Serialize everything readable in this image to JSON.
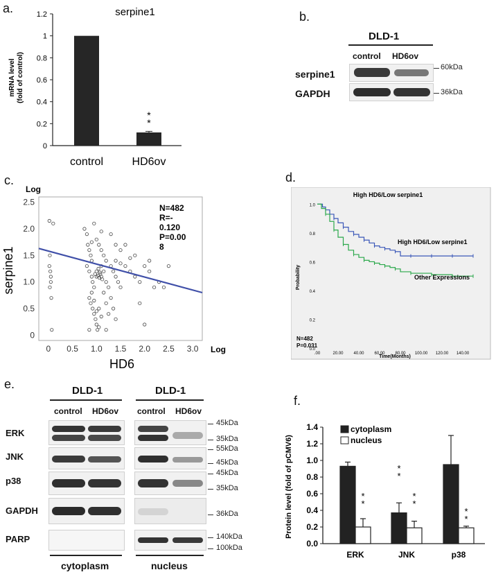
{
  "panels": {
    "a": "a.",
    "b": "b.",
    "c": "c.",
    "d": "d.",
    "e": "e.",
    "f": "f."
  },
  "chart_data": [
    {
      "panel": "a",
      "type": "bar",
      "title": "serpine1",
      "ylabel_line1": "mRNA level",
      "ylabel_line2": "(fold of control)",
      "categories": [
        "control",
        "HD6ov"
      ],
      "values": [
        1.0,
        0.12
      ],
      "errors": [
        0,
        0.01
      ],
      "yticks": [
        "0",
        "0.2",
        "0.4",
        "0.6",
        "0.8",
        "1",
        "1.2"
      ],
      "ylim": [
        0,
        1.2
      ],
      "significance": "**"
    },
    {
      "panel": "c",
      "type": "scatter",
      "xlabel": "HD6",
      "ylabel": "serpine1",
      "x_log_label": "Log",
      "y_log_label": "Log",
      "xlim": [
        -0.2,
        3.2
      ],
      "ylim": [
        -0.1,
        2.6
      ],
      "xticks": [
        "0",
        "0.5",
        "1.0",
        "1.5",
        "2.0",
        "2.5",
        "3.0"
      ],
      "yticks": [
        "0",
        "0.5",
        "1.0",
        "1.5",
        "2.0",
        "2.5"
      ],
      "stats_lines": [
        "N=482",
        "R=-",
        "0.120",
        "P=0.00",
        "8"
      ],
      "regression": {
        "x0": -0.2,
        "y0": 1.63,
        "x1": 3.2,
        "y1": 0.8
      },
      "points": [
        [
          0.02,
          2.15
        ],
        [
          0.03,
          1.5
        ],
        [
          0.02,
          1.3
        ],
        [
          0.05,
          1.1
        ],
        [
          0.03,
          0.9
        ],
        [
          0.06,
          0.7
        ],
        [
          0.1,
          2.1
        ],
        [
          0.04,
          1.2
        ],
        [
          0.07,
          0.1
        ],
        [
          0.05,
          1.0
        ],
        [
          0.75,
          2.0
        ],
        [
          0.8,
          1.9
        ],
        [
          0.82,
          1.7
        ],
        [
          0.85,
          1.6
        ],
        [
          0.88,
          1.5
        ],
        [
          0.9,
          1.4
        ],
        [
          0.8,
          1.3
        ],
        [
          0.85,
          1.2
        ],
        [
          0.9,
          1.1
        ],
        [
          0.92,
          1.0
        ],
        [
          0.95,
          0.9
        ],
        [
          0.9,
          0.8
        ],
        [
          0.85,
          0.7
        ],
        [
          0.88,
          0.6
        ],
        [
          0.92,
          0.5
        ],
        [
          0.95,
          0.4
        ],
        [
          0.98,
          0.3
        ],
        [
          1.0,
          0.2
        ],
        [
          1.02,
          0.1
        ],
        [
          1.05,
          0.15
        ],
        [
          0.97,
          1.15
        ],
        [
          1.0,
          1.1
        ],
        [
          1.03,
          1.12
        ],
        [
          1.06,
          1.08
        ],
        [
          1.08,
          1.15
        ],
        [
          1.1,
          1.1
        ],
        [
          1.12,
          1.05
        ],
        [
          1.0,
          1.2
        ],
        [
          1.04,
          1.25
        ],
        [
          1.07,
          1.18
        ],
        [
          0.95,
          2.1
        ],
        [
          1.0,
          1.8
        ],
        [
          1.05,
          1.7
        ],
        [
          1.1,
          1.6
        ],
        [
          1.15,
          1.5
        ],
        [
          1.2,
          1.4
        ],
        [
          1.1,
          1.3
        ],
        [
          1.15,
          1.2
        ],
        [
          1.2,
          1.0
        ],
        [
          1.25,
          0.9
        ],
        [
          1.3,
          1.3
        ],
        [
          1.35,
          1.2
        ],
        [
          1.4,
          1.1
        ],
        [
          1.45,
          1.0
        ],
        [
          1.5,
          0.9
        ],
        [
          1.4,
          1.4
        ],
        [
          1.5,
          1.35
        ],
        [
          1.6,
          1.3
        ],
        [
          1.7,
          1.2
        ],
        [
          1.8,
          1.1
        ],
        [
          1.3,
          0.7
        ],
        [
          1.35,
          0.5
        ],
        [
          1.4,
          0.3
        ],
        [
          1.2,
          0.6
        ],
        [
          1.15,
          0.8
        ],
        [
          1.25,
          0.4
        ],
        [
          1.05,
          0.5
        ],
        [
          1.1,
          0.35
        ],
        [
          1.0,
          0.45
        ],
        [
          0.95,
          0.65
        ],
        [
          1.9,
          1.0
        ],
        [
          2.0,
          1.3
        ],
        [
          2.1,
          1.2
        ],
        [
          2.2,
          0.9
        ],
        [
          2.3,
          1.0
        ],
        [
          2.5,
          1.3
        ],
        [
          2.0,
          0.2
        ],
        [
          1.9,
          0.6
        ],
        [
          2.4,
          0.9
        ],
        [
          2.1,
          1.4
        ],
        [
          1.6,
          1.7
        ],
        [
          1.7,
          1.45
        ],
        [
          1.8,
          1.5
        ],
        [
          1.5,
          1.6
        ],
        [
          1.3,
          1.9
        ],
        [
          1.4,
          1.7
        ],
        [
          0.9,
          1.75
        ],
        [
          1.1,
          1.95
        ],
        [
          0.85,
          0.1
        ],
        [
          1.2,
          0.1
        ]
      ]
    },
    {
      "panel": "d",
      "type": "line",
      "title": "High HD6/Low serpine1",
      "ylabel": "Probability",
      "xlabel": "Time(Months)",
      "xticks": [
        ".00",
        "20.00",
        "40.00",
        "60.00",
        "80.00",
        "100.00",
        "120.00",
        "140.00"
      ],
      "yticks": [
        "0.0",
        "0.2",
        "0.4",
        "0.6",
        "0.8",
        "1.0"
      ],
      "xlim": [
        0,
        160
      ],
      "ylim": [
        0,
        1.05
      ],
      "stats_lines": [
        "N=482",
        "P=0.031"
      ],
      "series": [
        {
          "name": "High HD6/Low serpine1",
          "color": "#3a57b8",
          "x": [
            0,
            5,
            8,
            12,
            16,
            20,
            25,
            30,
            35,
            40,
            45,
            50,
            55,
            60,
            65,
            70,
            75,
            80,
            90,
            100,
            110,
            120,
            130,
            140,
            150
          ],
          "y": [
            1.0,
            0.98,
            0.96,
            0.93,
            0.9,
            0.87,
            0.84,
            0.81,
            0.79,
            0.77,
            0.75,
            0.73,
            0.71,
            0.7,
            0.69,
            0.68,
            0.67,
            0.64,
            0.64,
            0.64,
            0.64,
            0.64,
            0.64,
            0.64,
            0.64
          ]
        },
        {
          "name": "Other Expressions",
          "color": "#2aa84a",
          "x": [
            0,
            4,
            8,
            12,
            16,
            20,
            25,
            30,
            35,
            40,
            45,
            50,
            55,
            60,
            65,
            70,
            75,
            80,
            90,
            100,
            110,
            120,
            130,
            140,
            150
          ],
          "y": [
            1.0,
            0.97,
            0.93,
            0.88,
            0.82,
            0.77,
            0.72,
            0.68,
            0.65,
            0.63,
            0.61,
            0.6,
            0.59,
            0.58,
            0.57,
            0.56,
            0.55,
            0.53,
            0.52,
            0.52,
            0.51,
            0.51,
            0.5,
            0.5,
            0.5
          ]
        }
      ]
    },
    {
      "panel": "f",
      "type": "bar",
      "ylabel": "Protein level (fold of pCMV6)",
      "categories": [
        "ERK",
        "JNK",
        "p38"
      ],
      "yticks": [
        "0.0",
        "0.2",
        "0.4",
        "0.6",
        "0.8",
        "1.0",
        "1.2",
        "1.4"
      ],
      "ylim": [
        0,
        1.4
      ],
      "series": [
        {
          "name": "cytoplasm",
          "values": [
            0.93,
            0.37,
            0.95
          ],
          "errors": [
            0.05,
            0.12,
            0.35
          ],
          "color": "#222222"
        },
        {
          "name": "nucleus",
          "values": [
            0.2,
            0.19,
            0.19
          ],
          "errors": [
            0.1,
            0.08,
            0.02
          ],
          "color": "#ffffff"
        }
      ],
      "significance": [
        "**",
        "**",
        "**",
        "",
        "**"
      ]
    }
  ],
  "blot_b": {
    "cell_line": "DLD-1",
    "columns": [
      "control",
      "HD6ov"
    ],
    "rows": [
      "serpine1",
      "GAPDH"
    ],
    "markers": [
      "60kDa",
      "36kDa"
    ]
  },
  "blot_e": {
    "groups": [
      {
        "cell_line": "DLD-1",
        "columns": [
          "control",
          "HD6ov"
        ],
        "fraction": "cytoplasm"
      },
      {
        "cell_line": "DLD-1",
        "columns": [
          "control",
          "HD6ov"
        ],
        "fraction": "nucleus"
      }
    ],
    "rows": [
      "ERK",
      "JNK",
      "p38",
      "GAPDH",
      "PARP"
    ],
    "markers": [
      "45kDa",
      "35kDa",
      "55kDa",
      "45kDa",
      "45kDa",
      "35kDa",
      "36kDa",
      "140kDa",
      "100kDa"
    ]
  }
}
